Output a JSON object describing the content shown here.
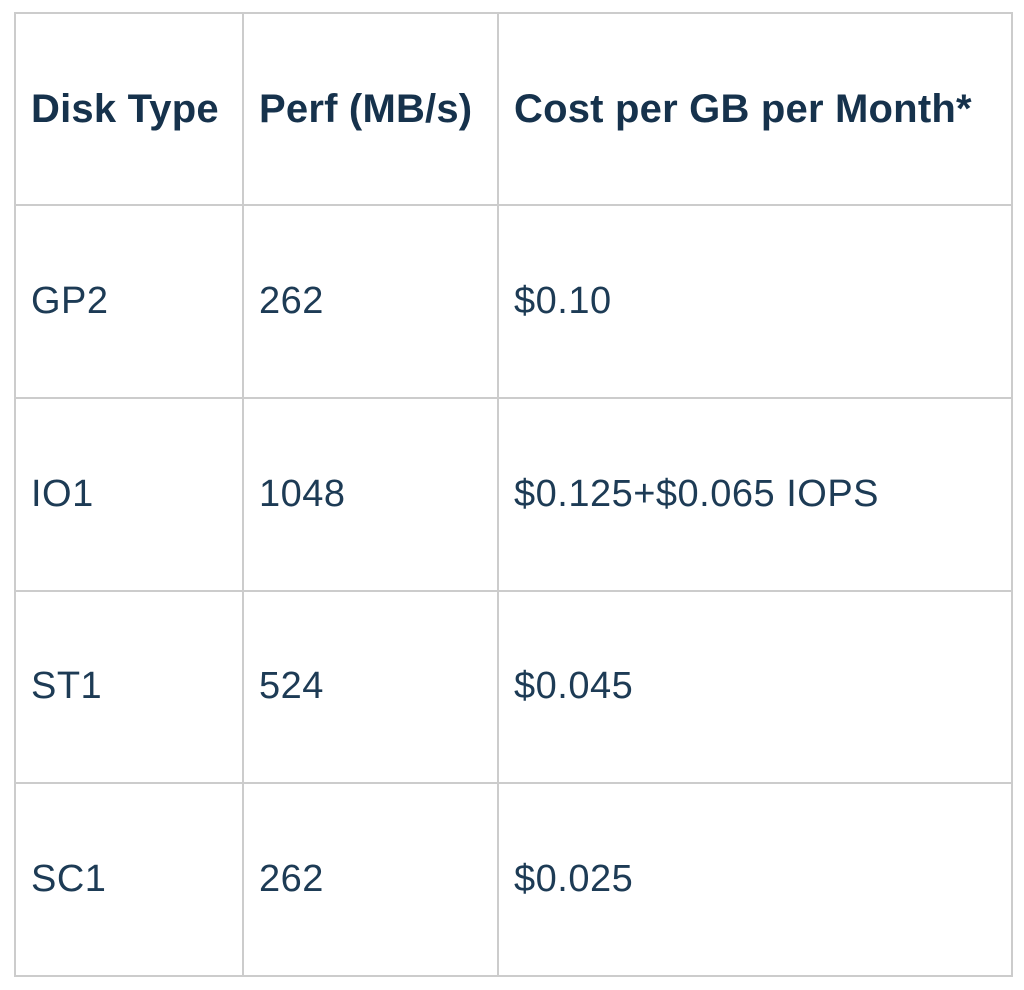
{
  "table": {
    "columns": [
      {
        "label": "Disk Type"
      },
      {
        "label": "Perf (MB/s)"
      },
      {
        "label": "Cost per GB per Month*"
      }
    ],
    "rows": [
      {
        "disk_type": "GP2",
        "perf": "262",
        "cost": "$0.10"
      },
      {
        "disk_type": "IO1",
        "perf": "1048",
        "cost": "$0.125+$0.065 IOPS"
      },
      {
        "disk_type": "ST1",
        "perf": "524",
        "cost": "$0.045"
      },
      {
        "disk_type": "SC1",
        "perf": "262",
        "cost": "$0.025"
      }
    ],
    "colors": {
      "header_text": "#16324c",
      "body_text": "#1d3b55",
      "border": "#cccccc",
      "background": "#ffffff"
    }
  }
}
